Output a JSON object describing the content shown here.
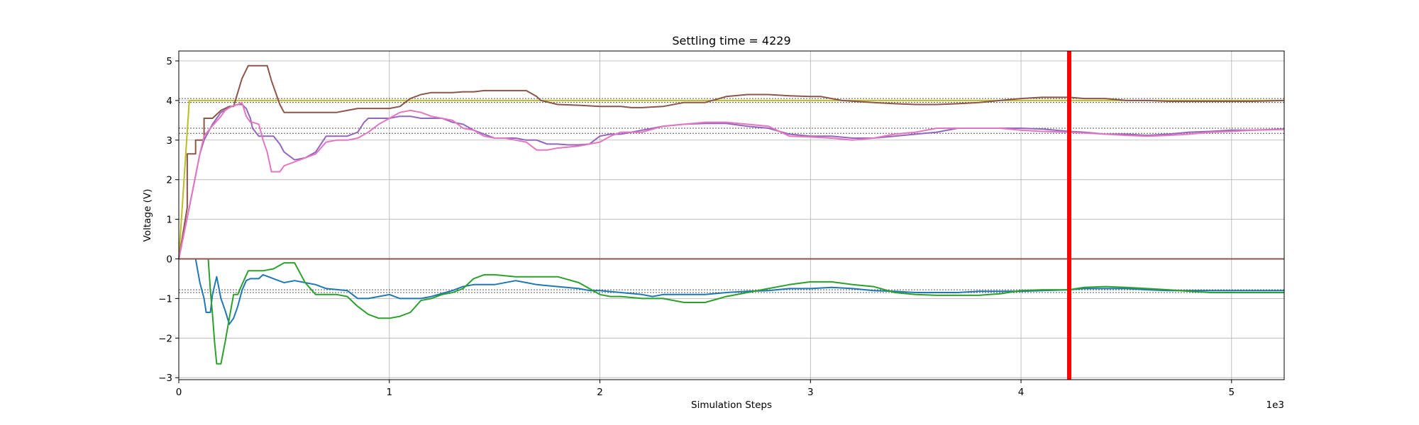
{
  "chart_data": {
    "type": "line",
    "title": "Settling time = 4229",
    "xlabel": "Simulation Steps",
    "ylabel": "Voltage (V)",
    "x_multiplier_label": "1e3",
    "xlim": [
      0,
      5250
    ],
    "ylim": [
      -3.05,
      5.25
    ],
    "x_ticks": [
      0,
      1000,
      2000,
      3000,
      4000,
      5000
    ],
    "x_tick_labels": [
      "0",
      "1",
      "2",
      "3",
      "4",
      "5"
    ],
    "y_ticks": [
      -3,
      -2,
      -1,
      0,
      1,
      2,
      3,
      4,
      5
    ],
    "y_tick_labels": [
      "−3",
      "−2",
      "−1",
      "0",
      "1",
      "2",
      "3",
      "4",
      "5"
    ],
    "grid": true,
    "settling_time": 4229,
    "settling_line_color": "#ff0000",
    "reference_levels": [
      {
        "y": 4.05,
        "color": "#555555"
      },
      {
        "y": 3.95,
        "color": "#555555"
      },
      {
        "y": 3.3,
        "color": "#555555"
      },
      {
        "y": 3.17,
        "color": "#555555"
      },
      {
        "y": -0.78,
        "color": "#555555"
      },
      {
        "y": -0.85,
        "color": "#555555"
      }
    ],
    "series": [
      {
        "color": "#bcbd22",
        "x": [
          0,
          50,
          5250
        ],
        "values": [
          0,
          4,
          4
        ]
      },
      {
        "color": "#8c564b",
        "x": [
          0,
          40,
          40,
          80,
          80,
          120,
          120,
          160,
          200,
          240,
          260,
          280,
          300,
          330,
          350,
          420,
          440,
          460,
          480,
          490,
          500,
          600,
          650,
          700,
          750,
          800,
          850,
          900,
          950,
          1000,
          1050,
          1100,
          1150,
          1200,
          1250,
          1300,
          1350,
          1400,
          1450,
          1500,
          1550,
          1600,
          1650,
          1700,
          1720,
          1800,
          1900,
          2000,
          2100,
          2150,
          2200,
          2300,
          2400,
          2500,
          2600,
          2700,
          2800,
          2900,
          3000,
          3050,
          3150,
          3300,
          3400,
          3500,
          3600,
          3700,
          3800,
          3900,
          4000,
          4100,
          4229,
          4300,
          4400,
          4500,
          4600,
          4700,
          4800,
          4900,
          5000,
          5100,
          5250
        ],
        "values": [
          0,
          1.3,
          2.65,
          2.65,
          3.0,
          3.0,
          3.55,
          3.55,
          3.75,
          3.85,
          3.85,
          4.2,
          4.55,
          4.88,
          4.88,
          4.88,
          4.5,
          4.2,
          3.9,
          3.8,
          3.7,
          3.7,
          3.7,
          3.7,
          3.7,
          3.75,
          3.8,
          3.8,
          3.8,
          3.8,
          3.85,
          4.05,
          4.15,
          4.2,
          4.2,
          4.2,
          4.22,
          4.22,
          4.25,
          4.25,
          4.25,
          4.25,
          4.25,
          4.1,
          4.0,
          3.9,
          3.88,
          3.85,
          3.85,
          3.82,
          3.82,
          3.85,
          3.95,
          3.95,
          4.1,
          4.15,
          4.15,
          4.12,
          4.1,
          4.1,
          4.0,
          3.95,
          3.92,
          3.9,
          3.9,
          3.92,
          3.95,
          4.0,
          4.05,
          4.08,
          4.08,
          4.05,
          4.05,
          4.0,
          4.0,
          3.98,
          3.98,
          3.98,
          3.98,
          3.98,
          4.0
        ]
      },
      {
        "color": "#9467bd",
        "x": [
          0,
          50,
          100,
          120,
          140,
          160,
          180,
          200,
          250,
          280,
          300,
          320,
          340,
          350,
          380,
          450,
          480,
          500,
          550,
          600,
          650,
          700,
          750,
          800,
          850,
          880,
          900,
          950,
          1000,
          1050,
          1100,
          1150,
          1200,
          1250,
          1300,
          1350,
          1400,
          1450,
          1500,
          1550,
          1600,
          1650,
          1700,
          1750,
          1800,
          1850,
          1900,
          1950,
          2000,
          2050,
          2100,
          2200,
          2300,
          2400,
          2500,
          2600,
          2700,
          2800,
          2900,
          3000,
          3100,
          3200,
          3300,
          3400,
          3500,
          3600,
          3700,
          3800,
          3900,
          4000,
          4100,
          4229,
          4300,
          4400,
          4500,
          4600,
          4700,
          4800,
          4900,
          5000,
          5100,
          5250
        ],
        "values": [
          0,
          1.3,
          2.65,
          3.0,
          3.2,
          3.4,
          3.55,
          3.7,
          3.85,
          3.9,
          3.9,
          3.8,
          3.55,
          3.3,
          3.1,
          3.1,
          2.9,
          2.7,
          2.5,
          2.55,
          2.7,
          3.1,
          3.1,
          3.1,
          3.2,
          3.45,
          3.55,
          3.55,
          3.55,
          3.6,
          3.6,
          3.55,
          3.55,
          3.55,
          3.45,
          3.4,
          3.25,
          3.15,
          3.05,
          3.05,
          3.05,
          3.0,
          3.0,
          2.9,
          2.9,
          2.88,
          2.88,
          2.9,
          3.1,
          3.15,
          3.15,
          3.25,
          3.35,
          3.4,
          3.42,
          3.42,
          3.35,
          3.3,
          3.15,
          3.1,
          3.1,
          3.05,
          3.05,
          3.1,
          3.15,
          3.2,
          3.3,
          3.3,
          3.3,
          3.3,
          3.28,
          3.22,
          3.2,
          3.15,
          3.15,
          3.12,
          3.15,
          3.2,
          3.22,
          3.25,
          3.25,
          3.28
        ]
      },
      {
        "color": "#e377c2",
        "x": [
          0,
          50,
          100,
          120,
          150,
          200,
          220,
          250,
          280,
          300,
          320,
          340,
          350,
          380,
          400,
          420,
          440,
          460,
          480,
          500,
          550,
          600,
          650,
          700,
          750,
          800,
          850,
          900,
          950,
          1000,
          1050,
          1100,
          1150,
          1200,
          1250,
          1300,
          1350,
          1400,
          1450,
          1500,
          1550,
          1600,
          1650,
          1700,
          1750,
          1800,
          1900,
          2000,
          2050,
          2100,
          2200,
          2300,
          2400,
          2500,
          2600,
          2700,
          2800,
          2900,
          3000,
          3100,
          3200,
          3300,
          3400,
          3500,
          3600,
          3700,
          3800,
          3900,
          4000,
          4100,
          4229,
          4300,
          4400,
          4500,
          4600,
          4700,
          4800,
          4900,
          5000,
          5100,
          5250
        ],
        "values": [
          0,
          1.3,
          2.65,
          3.1,
          3.3,
          3.6,
          3.75,
          3.85,
          3.9,
          3.95,
          3.6,
          3.45,
          3.45,
          3.4,
          3.0,
          2.7,
          2.2,
          2.2,
          2.2,
          2.35,
          2.45,
          2.55,
          2.65,
          2.95,
          3.0,
          3.0,
          3.05,
          3.2,
          3.4,
          3.55,
          3.7,
          3.75,
          3.7,
          3.6,
          3.55,
          3.5,
          3.3,
          3.25,
          3.1,
          3.05,
          3.05,
          3.0,
          2.95,
          2.75,
          2.75,
          2.8,
          2.85,
          2.95,
          3.1,
          3.2,
          3.2,
          3.35,
          3.4,
          3.45,
          3.45,
          3.4,
          3.35,
          3.1,
          3.08,
          3.05,
          3.0,
          3.05,
          3.15,
          3.2,
          3.3,
          3.3,
          3.3,
          3.3,
          3.25,
          3.22,
          3.2,
          3.18,
          3.15,
          3.12,
          3.1,
          3.12,
          3.15,
          3.2,
          3.22,
          3.25,
          3.27
        ]
      },
      {
        "color": "#1f77b4",
        "x": [
          0,
          50,
          80,
          100,
          120,
          130,
          150,
          160,
          180,
          200,
          220,
          240,
          260,
          280,
          300,
          320,
          340,
          360,
          380,
          400,
          450,
          500,
          550,
          600,
          650,
          700,
          800,
          850,
          900,
          950,
          1000,
          1050,
          1100,
          1150,
          1200,
          1300,
          1350,
          1400,
          1450,
          1500,
          1600,
          1650,
          1700,
          1800,
          1900,
          1950,
          2000,
          2100,
          2200,
          2250,
          2300,
          2400,
          2500,
          2600,
          2700,
          2800,
          2900,
          3000,
          3100,
          3200,
          3300,
          3400,
          3500,
          3600,
          3700,
          3800,
          3900,
          4000,
          4100,
          4229,
          4300,
          4400,
          4500,
          4600,
          4700,
          4800,
          4900,
          5000,
          5100,
          5250
        ],
        "values": [
          0,
          0,
          0,
          -0.6,
          -1.0,
          -1.35,
          -1.35,
          -0.9,
          -0.45,
          -1.0,
          -1.3,
          -1.65,
          -1.5,
          -1.2,
          -0.8,
          -0.55,
          -0.5,
          -0.5,
          -0.5,
          -0.4,
          -0.5,
          -0.6,
          -0.55,
          -0.6,
          -0.65,
          -0.75,
          -0.8,
          -1.0,
          -1.0,
          -0.95,
          -0.9,
          -1.0,
          -1.0,
          -1.0,
          -0.95,
          -0.8,
          -0.7,
          -0.65,
          -0.65,
          -0.65,
          -0.55,
          -0.6,
          -0.65,
          -0.7,
          -0.75,
          -0.8,
          -0.8,
          -0.85,
          -0.9,
          -0.95,
          -0.9,
          -0.9,
          -0.9,
          -0.85,
          -0.82,
          -0.8,
          -0.75,
          -0.75,
          -0.72,
          -0.75,
          -0.8,
          -0.82,
          -0.85,
          -0.85,
          -0.85,
          -0.82,
          -0.82,
          -0.82,
          -0.8,
          -0.78,
          -0.75,
          -0.75,
          -0.75,
          -0.78,
          -0.8,
          -0.8,
          -0.8,
          -0.8,
          -0.8,
          -0.8
        ]
      },
      {
        "color": "#2ca02c",
        "x": [
          0,
          140,
          150,
          160,
          170,
          180,
          190,
          200,
          220,
          240,
          260,
          280,
          300,
          330,
          350,
          400,
          450,
          500,
          550,
          600,
          650,
          700,
          750,
          800,
          850,
          900,
          950,
          1000,
          1050,
          1100,
          1150,
          1200,
          1250,
          1300,
          1350,
          1400,
          1450,
          1500,
          1600,
          1700,
          1800,
          1900,
          2000,
          2050,
          2100,
          2200,
          2300,
          2400,
          2500,
          2600,
          2700,
          2800,
          2900,
          3000,
          3100,
          3200,
          3300,
          3400,
          3500,
          3600,
          3700,
          3800,
          3900,
          4000,
          4100,
          4229,
          4300,
          4400,
          4500,
          4600,
          4700,
          4800,
          4900,
          5000,
          5100,
          5250
        ],
        "values": [
          0,
          0,
          -0.8,
          -1.4,
          -2.1,
          -2.65,
          -2.65,
          -2.65,
          -2.1,
          -1.5,
          -0.9,
          -0.9,
          -0.65,
          -0.3,
          -0.3,
          -0.3,
          -0.25,
          -0.1,
          -0.1,
          -0.6,
          -0.9,
          -0.9,
          -0.9,
          -0.95,
          -1.2,
          -1.4,
          -1.5,
          -1.5,
          -1.45,
          -1.35,
          -1.05,
          -1.0,
          -0.9,
          -0.85,
          -0.75,
          -0.5,
          -0.4,
          -0.4,
          -0.45,
          -0.45,
          -0.45,
          -0.6,
          -0.9,
          -0.95,
          -0.95,
          -1.0,
          -1.0,
          -1.1,
          -1.1,
          -0.95,
          -0.85,
          -0.75,
          -0.65,
          -0.58,
          -0.58,
          -0.65,
          -0.7,
          -0.85,
          -0.9,
          -0.92,
          -0.92,
          -0.92,
          -0.88,
          -0.8,
          -0.78,
          -0.78,
          -0.72,
          -0.7,
          -0.72,
          -0.75,
          -0.78,
          -0.82,
          -0.85,
          -0.85,
          -0.85,
          -0.85
        ]
      },
      {
        "color": "#ff7f0e",
        "x": [
          0,
          5250
        ],
        "values": [
          0,
          0
        ]
      },
      {
        "color": "#d62728",
        "x": [
          0,
          5250
        ],
        "values": [
          0,
          0
        ]
      },
      {
        "color": "#8c564b",
        "x": [
          0,
          5250
        ],
        "values": [
          0,
          0
        ]
      }
    ]
  }
}
